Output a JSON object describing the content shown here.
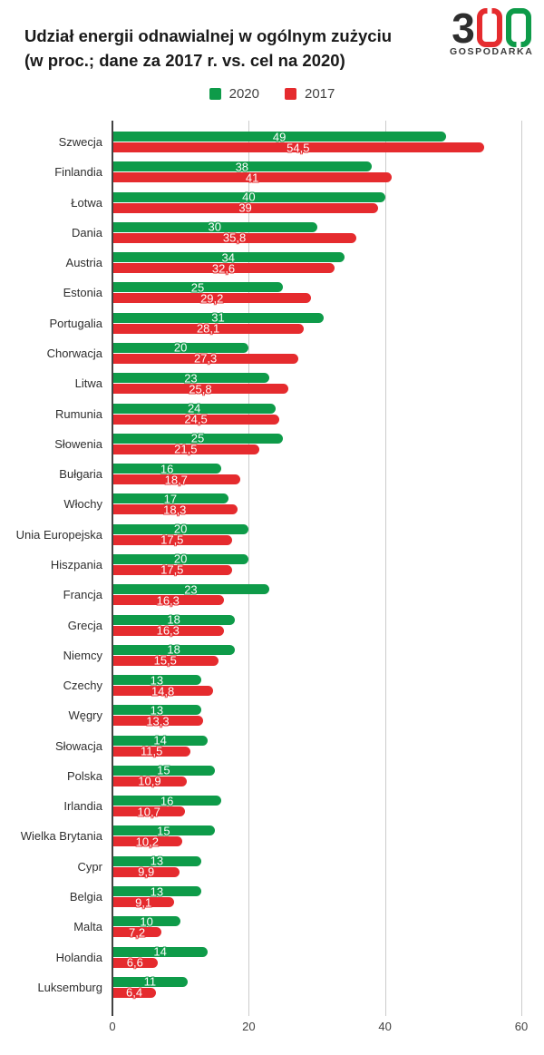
{
  "header": {
    "title_line1": "Udział energii odnawialnej w ogólnym zużyciu",
    "title_line2": "(w proc.; dane za 2017 r. vs. cel na 2020)",
    "logo": {
      "digit3": "3",
      "caption": "GOSPODARKA",
      "digit_color": "#2e2e2e",
      "zero1_color": "#e52b2e",
      "zero2_color": "#0e9b49"
    }
  },
  "legend": [
    {
      "label": "2020",
      "color": "#0e9b49"
    },
    {
      "label": "2017",
      "color": "#e52b2e"
    }
  ],
  "chart_data": {
    "type": "bar",
    "orientation": "horizontal",
    "title": "Udział energii odnawialnej w ogólnym zużyciu (w proc.; dane za 2017 r. vs. cel na 2020)",
    "xlabel": "",
    "ylabel": "",
    "xlim": [
      0,
      60
    ],
    "xticks": [
      0,
      20,
      40,
      60
    ],
    "grid": true,
    "legend_position": "top",
    "background": "#ffffff",
    "categories": [
      "Szwecja",
      "Finlandia",
      "Łotwa",
      "Dania",
      "Austria",
      "Estonia",
      "Portugalia",
      "Chorwacja",
      "Litwa",
      "Rumunia",
      "Słowenia",
      "Bułgaria",
      "Włochy",
      "Unia Europejska",
      "Hiszpania",
      "Francja",
      "Grecja",
      "Niemcy",
      "Czechy",
      "Węgry",
      "Słowacja",
      "Polska",
      "Irlandia",
      "Wielka Brytania",
      "Cypr",
      "Belgia",
      "Malta",
      "Holandia",
      "Luksemburg"
    ],
    "series": [
      {
        "name": "2020",
        "color": "#0e9b49",
        "values": [
          49,
          38,
          40,
          30,
          34,
          25,
          31,
          20,
          23,
          24,
          25,
          16,
          17,
          20,
          20,
          23,
          18,
          18,
          13,
          13,
          14,
          15,
          16,
          15,
          13,
          13,
          10,
          14,
          11
        ],
        "labels": [
          "49",
          "38",
          "40",
          "30",
          "34",
          "25",
          "31",
          "20",
          "23",
          "24",
          "25",
          "16",
          "17",
          "20",
          "20",
          "23",
          "18",
          "18",
          "13",
          "13",
          "14",
          "15",
          "16",
          "15",
          "13",
          "13",
          "10",
          "14",
          "11"
        ]
      },
      {
        "name": "2017",
        "color": "#e52b2e",
        "values": [
          54.5,
          41,
          39,
          35.8,
          32.6,
          29.2,
          28.1,
          27.3,
          25.8,
          24.5,
          21.5,
          18.7,
          18.3,
          17.5,
          17.5,
          16.3,
          16.3,
          15.5,
          14.8,
          13.3,
          11.5,
          10.9,
          10.7,
          10.2,
          9.9,
          9.1,
          7.2,
          6.6,
          6.4
        ],
        "labels": [
          "54,5",
          "41",
          "39",
          "35,8",
          "32,6",
          "29,2",
          "28,1",
          "27,3",
          "25,8",
          "24,5",
          "21,5",
          "18,7",
          "18,3",
          "17,5",
          "17,5",
          "16,3",
          "16,3",
          "15,5",
          "14,8",
          "13,3",
          "11,5",
          "10,9",
          "10,7",
          "10,2",
          "9,9",
          "9,1",
          "7,2",
          "6,6",
          "6,4"
        ]
      }
    ]
  }
}
